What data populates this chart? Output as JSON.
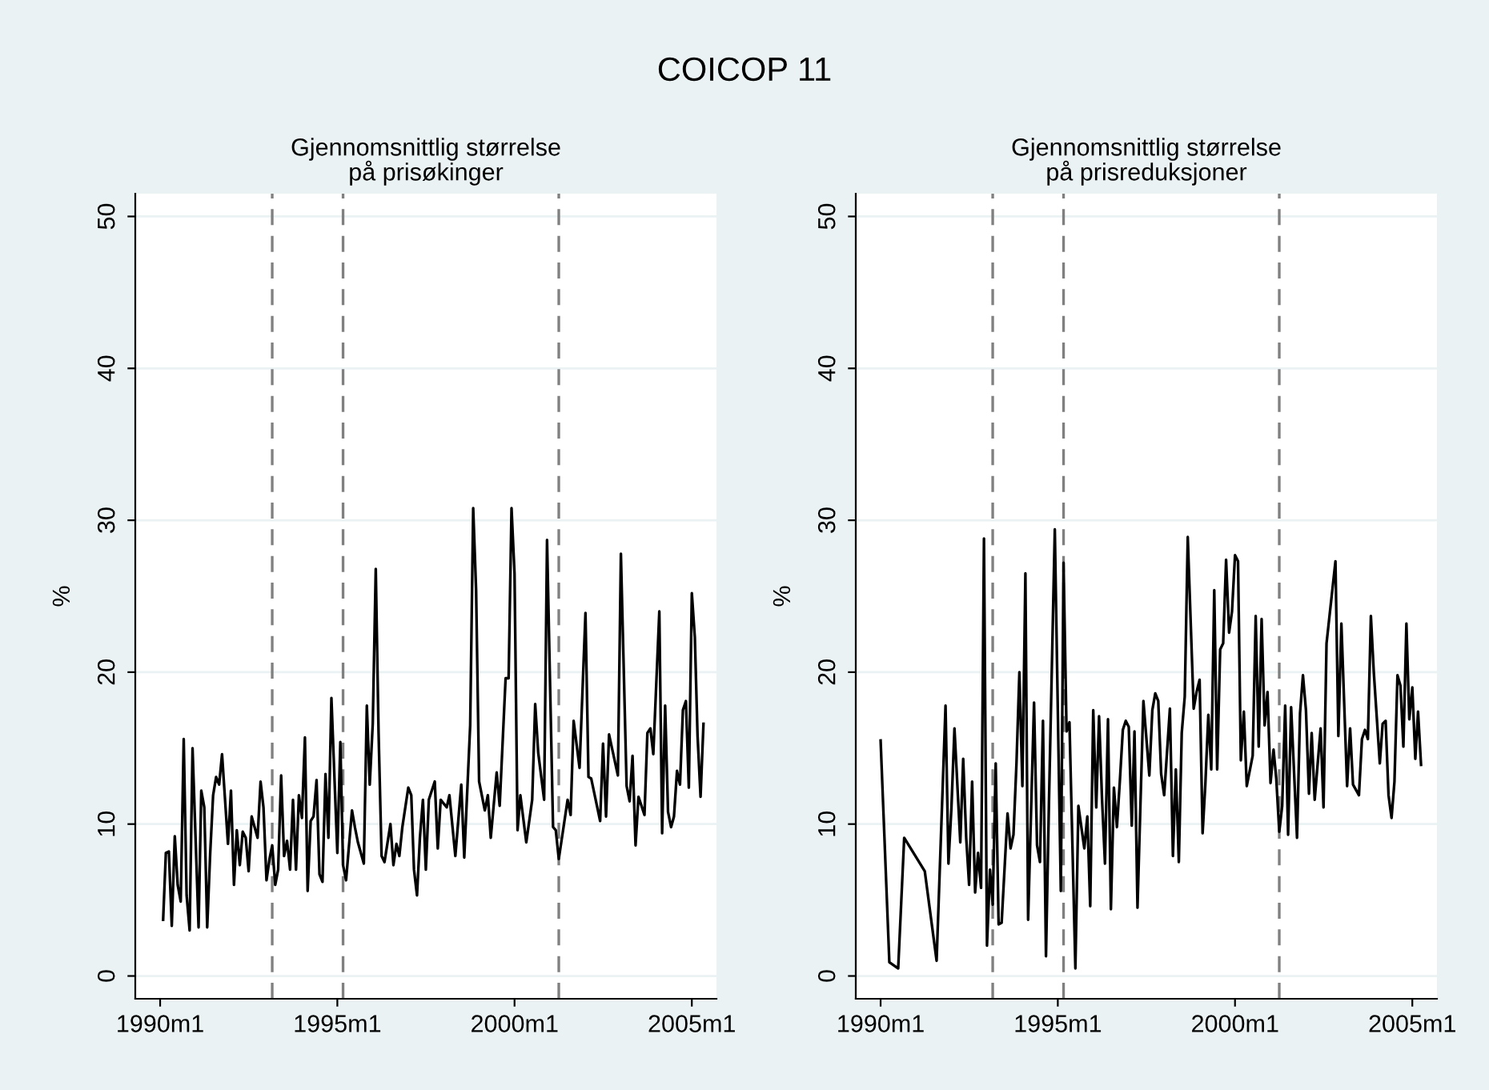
{
  "chart_data": [
    {
      "type": "line",
      "title": "COICOP 11",
      "subtitle": "Gjennomsnittlig størrelse\npå prisøkinger",
      "ylabel": "%",
      "grid": "y",
      "legend": false,
      "marker": "none",
      "line_style": "solid",
      "xlim": [
        "1989-04-20",
        "2005-09-12"
      ],
      "xticks": [
        {
          "value": "1990-01",
          "label": "1990m1"
        },
        {
          "value": "1995-01",
          "label": "1995m1"
        },
        {
          "value": "2000-01",
          "label": "2000m1"
        },
        {
          "value": "2005-01",
          "label": "2005m1"
        }
      ],
      "ylim": [
        -1.5,
        51.5
      ],
      "yticks": [
        0,
        10,
        20,
        30,
        40,
        50
      ],
      "ref_lines": [
        {
          "axis": "x",
          "value": "1993-03",
          "color": "#808080",
          "line_style": "dashed"
        },
        {
          "axis": "x",
          "value": "1995-03",
          "color": "#808080",
          "line_style": "dashed"
        },
        {
          "axis": "x",
          "value": "2001-04",
          "color": "#808080",
          "line_style": "dashed"
        }
      ],
      "series": [
        {
          "color": "#000000",
          "x": [
            "1990-02",
            "1990-03",
            "1990-04",
            "1990-05",
            "1990-06",
            "1990-07",
            "1990-08",
            "1990-09",
            "1990-10",
            "1990-11",
            "1990-12",
            "1991-02",
            "1991-03",
            "1991-04",
            "1991-05",
            "1991-06",
            "1991-07",
            "1991-08",
            "1991-09",
            "1991-10",
            "1991-12",
            "1992-01",
            "1992-02",
            "1992-03",
            "1992-04",
            "1992-05",
            "1992-06",
            "1992-07",
            "1992-08",
            "1992-10",
            "1992-11",
            "1992-12",
            "1993-01",
            "1993-02",
            "1993-03",
            "1993-04",
            "1993-05",
            "1993-06",
            "1993-07",
            "1993-08",
            "1993-09",
            "1993-10",
            "1993-11",
            "1993-12",
            "1994-01",
            "1994-02",
            "1994-03",
            "1994-04",
            "1994-05",
            "1994-06",
            "1994-07",
            "1994-08",
            "1994-09",
            "1994-10",
            "1994-11",
            "1995-01",
            "1995-02",
            "1995-03",
            "1995-04",
            "1995-06",
            "1995-07",
            "1995-08",
            "1995-10",
            "1995-11",
            "1995-12",
            "1996-01",
            "1996-02",
            "1996-03",
            "1996-04",
            "1996-05",
            "1996-07",
            "1996-08",
            "1996-09",
            "1996-10",
            "1996-11",
            "1997-01",
            "1997-02",
            "1997-03",
            "1997-04",
            "1997-05",
            "1997-06",
            "1997-07",
            "1997-08",
            "1997-10",
            "1997-11",
            "1997-12",
            "1998-02",
            "1998-03",
            "1998-05",
            "1998-07",
            "1998-08",
            "1998-10",
            "1998-11",
            "1998-12",
            "1999-01",
            "1999-03",
            "1999-04",
            "1999-05",
            "1999-07",
            "1999-08",
            "1999-10",
            "1999-11",
            "1999-12",
            "2000-01",
            "2000-02",
            "2000-03",
            "2000-05",
            "2000-07",
            "2000-08",
            "2000-09",
            "2000-11",
            "2000-12",
            "2001-02",
            "2001-03",
            "2001-04",
            "2001-07",
            "2001-08",
            "2001-09",
            "2001-11",
            "2002-01",
            "2002-02",
            "2002-03",
            "2002-06",
            "2002-07",
            "2002-08",
            "2002-09",
            "2002-12",
            "2003-01",
            "2003-03",
            "2003-04",
            "2003-05",
            "2003-06",
            "2003-07",
            "2003-09",
            "2003-10",
            "2003-11",
            "2003-12",
            "2004-02",
            "2004-03",
            "2004-04",
            "2004-05",
            "2004-06",
            "2004-07",
            "2004-08",
            "2004-09",
            "2004-10",
            "2004-11",
            "2004-12",
            "2005-01",
            "2005-02",
            "2005-03",
            "2005-04",
            "2005-05"
          ],
          "values": [
            3.7,
            8.1,
            8.2,
            3.3,
            9.2,
            6.0,
            4.9,
            15.6,
            5.3,
            3.0,
            15.0,
            3.2,
            12.2,
            11.1,
            3.2,
            8.1,
            11.9,
            13.1,
            12.6,
            14.6,
            8.7,
            12.2,
            6.0,
            9.6,
            7.3,
            9.5,
            9.1,
            6.9,
            10.5,
            9.1,
            12.8,
            11.1,
            6.3,
            7.7,
            8.6,
            6.0,
            7.0,
            13.2,
            7.9,
            8.9,
            7.0,
            11.6,
            7.0,
            11.9,
            10.4,
            15.7,
            5.6,
            10.2,
            10.5,
            12.9,
            6.7,
            6.2,
            13.3,
            9.1,
            18.3,
            8.1,
            15.4,
            7.3,
            6.3,
            10.9,
            9.8,
            8.8,
            7.4,
            17.8,
            12.6,
            16.6,
            26.8,
            16.0,
            7.9,
            7.5,
            10.0,
            7.3,
            8.7,
            7.9,
            9.8,
            12.4,
            11.9,
            7.0,
            5.3,
            9.1,
            11.6,
            7.0,
            11.6,
            12.8,
            8.4,
            11.6,
            11.1,
            11.9,
            7.9,
            12.6,
            7.8,
            16.5,
            30.8,
            25.4,
            12.8,
            10.9,
            11.9,
            9.1,
            13.4,
            11.2,
            19.6,
            19.6,
            30.8,
            26.5,
            9.6,
            11.9,
            8.8,
            11.6,
            17.9,
            14.7,
            11.6,
            28.7,
            9.8,
            9.6,
            7.7,
            11.6,
            10.6,
            16.8,
            13.7,
            23.9,
            13.1,
            13.0,
            10.2,
            15.3,
            10.5,
            15.9,
            13.2,
            27.8,
            12.5,
            11.5,
            14.5,
            8.6,
            11.8,
            10.6,
            16.0,
            16.3,
            14.6,
            24.0,
            9.4,
            17.8,
            10.8,
            9.8,
            10.5,
            13.5,
            12.6,
            17.5,
            18.1,
            12.4,
            25.2,
            22.3,
            15.8,
            11.8,
            16.6
          ]
        }
      ]
    },
    {
      "type": "line",
      "subtitle": "Gjennomsnittlig størrelse\npå prisreduksjoner",
      "ylabel": "%",
      "grid": "y",
      "legend": false,
      "marker": "none",
      "line_style": "solid",
      "xlim": [
        "1989-04-20",
        "2005-09-12"
      ],
      "xticks": [
        {
          "value": "1990-01",
          "label": "1990m1"
        },
        {
          "value": "1995-01",
          "label": "1995m1"
        },
        {
          "value": "2000-01",
          "label": "2000m1"
        },
        {
          "value": "2005-01",
          "label": "2005m1"
        }
      ],
      "ylim": [
        -1.5,
        51.5
      ],
      "yticks": [
        0,
        10,
        20,
        30,
        40,
        50
      ],
      "ref_lines": [
        {
          "axis": "x",
          "value": "1993-03",
          "color": "#808080",
          "line_style": "dashed"
        },
        {
          "axis": "x",
          "value": "1995-03",
          "color": "#808080",
          "line_style": "dashed"
        },
        {
          "axis": "x",
          "value": "2001-04",
          "color": "#808080",
          "line_style": "dashed"
        }
      ],
      "series": [
        {
          "color": "#000000",
          "x": [
            "1990-01",
            "1990-04",
            "1990-07",
            "1990-09",
            "1991-04",
            "1991-08",
            "1991-09",
            "1991-11",
            "1991-12",
            "1992-01",
            "1992-02",
            "1992-04",
            "1992-05",
            "1992-06",
            "1992-07",
            "1992-08",
            "1992-09",
            "1992-10",
            "1992-11",
            "1992-12",
            "1993-01",
            "1993-02",
            "1993-03",
            "1993-04",
            "1993-05",
            "1993-06",
            "1993-08",
            "1993-09",
            "1993-10",
            "1993-11",
            "1993-12",
            "1994-01",
            "1994-02",
            "1994-03",
            "1994-05",
            "1994-06",
            "1994-07",
            "1994-08",
            "1994-09",
            "1994-10",
            "1994-12",
            "1995-02",
            "1995-03",
            "1995-04",
            "1995-05",
            "1995-07",
            "1995-08",
            "1995-10",
            "1995-11",
            "1995-12",
            "1996-01",
            "1996-02",
            "1996-03",
            "1996-04",
            "1996-05",
            "1996-06",
            "1996-07",
            "1996-08",
            "1996-09",
            "1996-10",
            "1996-11",
            "1996-12",
            "1997-01",
            "1997-02",
            "1997-03",
            "1997-04",
            "1997-06",
            "1997-08",
            "1997-09",
            "1997-10",
            "1997-11",
            "1997-12",
            "1998-01",
            "1998-03",
            "1998-04",
            "1998-05",
            "1998-06",
            "1998-07",
            "1998-08",
            "1998-09",
            "1998-11",
            "1998-12",
            "1999-01",
            "1999-02",
            "1999-03",
            "1999-04",
            "1999-05",
            "1999-06",
            "1999-07",
            "1999-08",
            "1999-09",
            "1999-10",
            "1999-11",
            "1999-12",
            "2000-01",
            "2000-02",
            "2000-03",
            "2000-04",
            "2000-05",
            "2000-07",
            "2000-08",
            "2000-09",
            "2000-10",
            "2000-11",
            "2000-12",
            "2001-01",
            "2001-02",
            "2001-03",
            "2001-04",
            "2001-05",
            "2001-06",
            "2001-07",
            "2001-08",
            "2001-10",
            "2001-11",
            "2001-12",
            "2002-01",
            "2002-02",
            "2002-03",
            "2002-04",
            "2002-06",
            "2002-07",
            "2002-08",
            "2002-11",
            "2002-12",
            "2003-01",
            "2003-03",
            "2003-04",
            "2003-05",
            "2003-07",
            "2003-08",
            "2003-09",
            "2003-10",
            "2003-11",
            "2003-12",
            "2004-02",
            "2004-03",
            "2004-04",
            "2004-05",
            "2004-06",
            "2004-07",
            "2004-08",
            "2004-09",
            "2004-10",
            "2004-11",
            "2004-12",
            "2005-01",
            "2005-02",
            "2005-03",
            "2005-04"
          ],
          "values": [
            15.5,
            0.9,
            0.5,
            9.1,
            6.9,
            1.0,
            6.7,
            17.8,
            7.4,
            11.1,
            16.3,
            8.8,
            14.3,
            9.1,
            6.0,
            12.8,
            5.5,
            8.1,
            5.8,
            28.8,
            2.0,
            7.0,
            4.7,
            14.0,
            3.4,
            3.5,
            10.7,
            8.4,
            9.3,
            14.0,
            20.0,
            12.5,
            26.5,
            3.7,
            18.0,
            8.6,
            7.5,
            16.8,
            1.3,
            11.2,
            29.4,
            5.6,
            27.2,
            16.1,
            16.7,
            0.5,
            11.2,
            8.4,
            10.5,
            4.6,
            17.5,
            11.1,
            17.1,
            11.6,
            7.4,
            16.9,
            4.4,
            12.4,
            9.8,
            12.8,
            16.2,
            16.8,
            16.4,
            9.9,
            16.1,
            4.5,
            18.1,
            13.2,
            17.5,
            18.6,
            18.1,
            13.3,
            11.9,
            17.6,
            7.9,
            13.6,
            7.5,
            16.0,
            18.4,
            28.9,
            17.6,
            18.7,
            19.5,
            9.4,
            12.6,
            17.2,
            13.6,
            25.4,
            13.6,
            21.5,
            21.9,
            27.4,
            22.6,
            24.0,
            27.7,
            27.3,
            14.2,
            17.4,
            12.5,
            14.5,
            23.7,
            15.1,
            23.5,
            16.5,
            18.7,
            12.7,
            14.9,
            13.0,
            9.5,
            11.2,
            17.8,
            9.3,
            17.7,
            9.1,
            17.3,
            19.8,
            17.5,
            12.0,
            16.0,
            11.6,
            16.3,
            11.1,
            21.9,
            27.3,
            15.8,
            23.2,
            12.5,
            16.3,
            12.6,
            11.9,
            15.6,
            16.2,
            15.6,
            23.7,
            20.0,
            14.0,
            16.6,
            16.8,
            11.9,
            10.4,
            12.8,
            19.8,
            19.1,
            15.1,
            23.2,
            16.9,
            19.0,
            14.3,
            17.4,
            13.9
          ]
        }
      ]
    }
  ]
}
